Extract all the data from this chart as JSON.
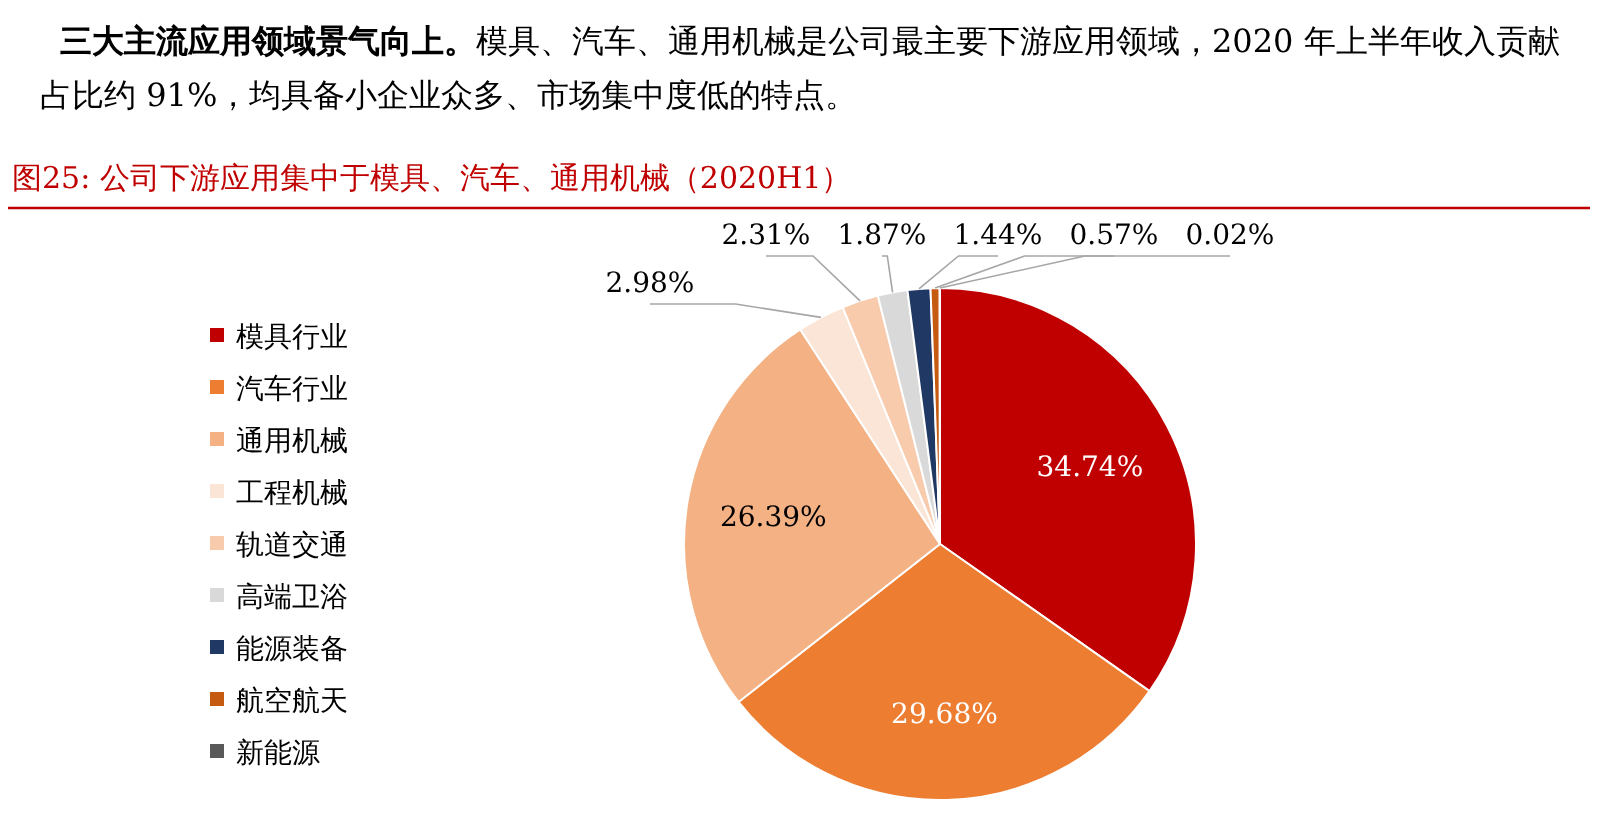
{
  "chart_data": {
    "type": "pie",
    "title": "图25:  公司下游应用集中于模具、汽车、通用机械（2020H1）",
    "annotations": [
      "**三大主流应用领域景气向上。**模具、汽车、通用机械是公司最主要下游应用领域，2020 年上半年收入贡献占比约 91%，均具备小企业众多、市场集中度低的特点。"
    ],
    "categories": [
      "模具行业",
      "汽车行业",
      "通用机械",
      "工程机械",
      "轨道交通",
      "高端卫浴",
      "能源装备",
      "航空航天",
      "新能源"
    ],
    "values": [
      34.74,
      29.68,
      26.39,
      2.98,
      2.31,
      1.87,
      1.44,
      0.57,
      0.02
    ],
    "colors": [
      "#c00000",
      "#ed7d31",
      "#f4b183",
      "#fbe5d6",
      "#f8cbad",
      "#d9d9d9",
      "#1f3864",
      "#c55a11",
      "#595959"
    ],
    "value_labels": [
      "34.74%",
      "29.68%",
      "26.39%",
      "2.98%",
      "2.31%",
      "1.87%",
      "1.44%",
      "0.57%",
      "0.02%"
    ],
    "legend": "left"
  }
}
